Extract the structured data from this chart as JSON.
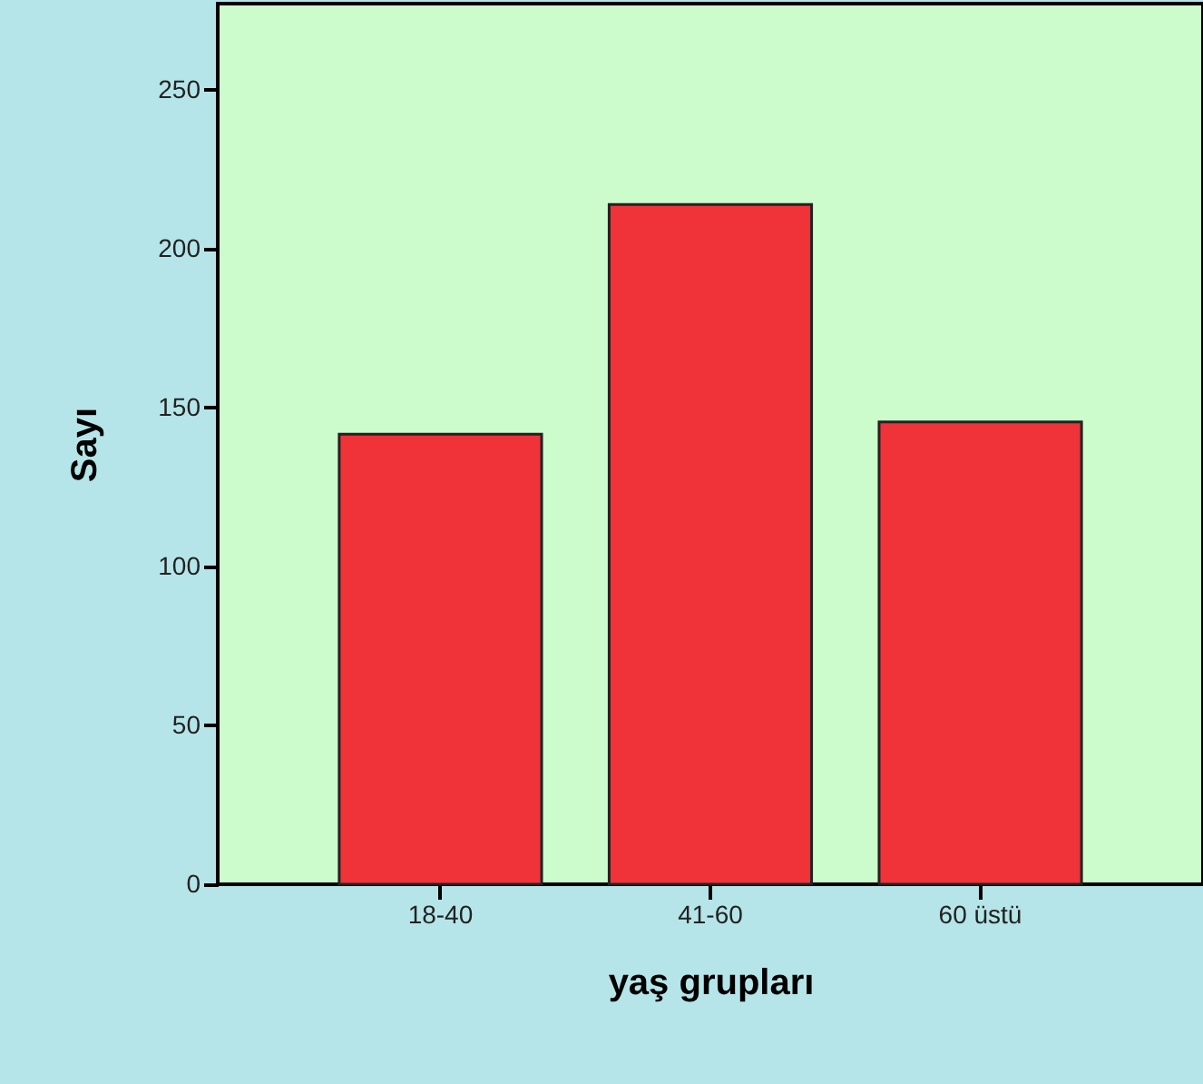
{
  "chart_data": {
    "type": "bar",
    "xlabel": "yaş grupları",
    "ylabel": "Sayı",
    "categories": [
      "18-40",
      "41-60",
      "60 üstü"
    ],
    "values": [
      141.6,
      213.8,
      145.4
    ],
    "color": "#ef3338",
    "ylim": [
      0,
      277
    ],
    "yticks": [
      0,
      50,
      100,
      150,
      200,
      250
    ],
    "grid": false
  }
}
